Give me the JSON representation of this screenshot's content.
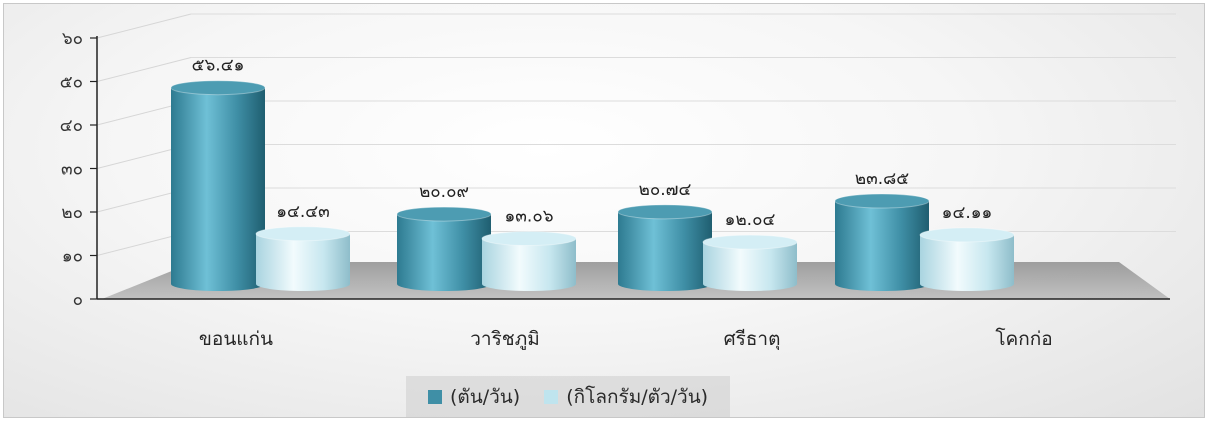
{
  "chart_data": {
    "type": "bar",
    "title": "",
    "xlabel": "",
    "ylabel": "",
    "ylim": [
      0,
      60
    ],
    "yticks": [
      0,
      10,
      20,
      30,
      40,
      50,
      60
    ],
    "ytick_labels": [
      "๐",
      "๑๐",
      "๒๐",
      "๓๐",
      "๔๐",
      "๕๐",
      "๖๐"
    ],
    "categories": [
      "ขอนแก่น",
      "วาริชภูมิ",
      "ศรีธาตุ",
      "โคกก่อ"
    ],
    "series": [
      {
        "name": "(ตัน/วัน)",
        "values": [
          56.41,
          20.09,
          20.74,
          23.85
        ],
        "value_labels": [
          "๕๖.๔๑",
          "๒๐.๐๙",
          "๒๐.๗๔",
          "๒๓.๘๕"
        ],
        "color": "#3f8fa6"
      },
      {
        "name": "(กิโลกรัม/ตัว/วัน)",
        "values": [
          14.43,
          13.06,
          12.04,
          14.11
        ],
        "value_labels": [
          "๑๔.๔๓",
          "๑๓.๐๖",
          "๑๒.๐๔",
          "๑๔.๑๑"
        ],
        "color": "#bfe4ee"
      }
    ],
    "grid": true,
    "legend_position": "bottom",
    "style": "3d-cylinder"
  }
}
